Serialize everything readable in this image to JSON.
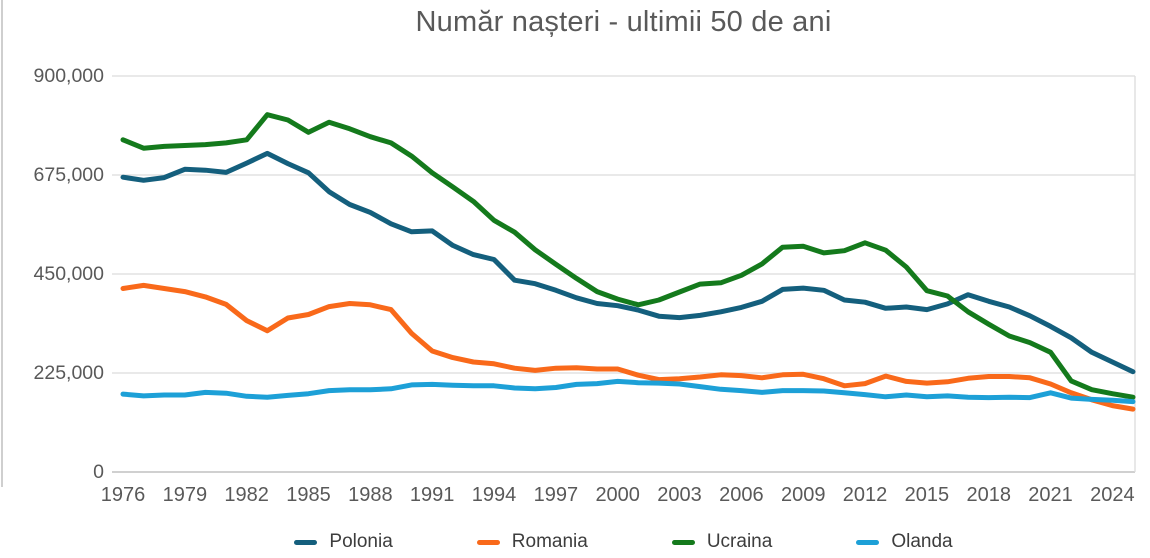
{
  "title": "Număr nașteri - ultimii 50 de ani",
  "chart_data": {
    "type": "line",
    "title": "Număr nașteri - ultimii 50 de ani",
    "xlabel": "",
    "ylabel": "",
    "ylim": [
      0,
      900000
    ],
    "grid": "horizontal",
    "legend_position": "bottom",
    "y_ticks": {
      "values": [
        0,
        225000,
        450000,
        675000,
        900000
      ],
      "labels": [
        "0",
        "225,000",
        "450,000",
        "675,000",
        "900,000"
      ]
    },
    "x_tick_labels": [
      "1976",
      "1979",
      "1982",
      "1985",
      "1988",
      "1991",
      "1994",
      "1997",
      "2000",
      "2003",
      "2006",
      "2009",
      "2012",
      "2015",
      "2018",
      "2021",
      "2024"
    ],
    "x_tick_years": [
      1976,
      1979,
      1982,
      1985,
      1988,
      1991,
      1994,
      1997,
      2000,
      2003,
      2006,
      2009,
      2012,
      2015,
      2018,
      2021,
      2024
    ],
    "x_years": [
      1976,
      1977,
      1978,
      1979,
      1980,
      1981,
      1982,
      1983,
      1984,
      1985,
      1986,
      1987,
      1988,
      1989,
      1990,
      1991,
      1992,
      1993,
      1994,
      1995,
      1996,
      1997,
      1998,
      1999,
      2000,
      2001,
      2002,
      2003,
      2004,
      2005,
      2006,
      2007,
      2008,
      2009,
      2010,
      2011,
      2012,
      2013,
      2014,
      2015,
      2016,
      2017,
      2018,
      2019,
      2020,
      2021,
      2022,
      2023,
      2024,
      2025
    ],
    "series": [
      {
        "name": "Polonia",
        "color": "#145F7D",
        "values": [
          670000,
          663000,
          669000,
          688000,
          686000,
          681000,
          702000,
          724000,
          701000,
          680000,
          637000,
          608000,
          590000,
          564000,
          546000,
          548000,
          515000,
          494000,
          483000,
          436000,
          428000,
          413000,
          396000,
          383000,
          378000,
          368000,
          354000,
          351000,
          356000,
          364000,
          374000,
          388000,
          415000,
          418000,
          413000,
          391000,
          386000,
          372000,
          375000,
          369000,
          382000,
          403000,
          388000,
          375000,
          355000,
          331000,
          305000,
          272000,
          250000,
          228000
        ]
      },
      {
        "name": "Romania",
        "color": "#F9691A",
        "values": [
          417000,
          424000,
          417000,
          410000,
          398000,
          381000,
          344000,
          321000,
          350000,
          358000,
          376000,
          383000,
          380000,
          369000,
          315000,
          275000,
          260000,
          250000,
          246000,
          236000,
          231000,
          236000,
          237000,
          234000,
          234000,
          220000,
          210000,
          212000,
          216000,
          221000,
          219000,
          214000,
          221000,
          222000,
          212000,
          196000,
          201000,
          218000,
          206000,
          202000,
          205000,
          213000,
          217000,
          217000,
          214000,
          200000,
          180000,
          164000,
          151000,
          143000
        ]
      },
      {
        "name": "Ucraina",
        "color": "#147A1C",
        "values": [
          755000,
          736000,
          740000,
          742000,
          744000,
          748000,
          755000,
          812000,
          800000,
          772000,
          795000,
          780000,
          762000,
          748000,
          718000,
          680000,
          648000,
          615000,
          572000,
          545000,
          505000,
          472000,
          440000,
          410000,
          393000,
          380000,
          391000,
          409000,
          427000,
          430000,
          447000,
          473000,
          511000,
          513000,
          498000,
          503000,
          521000,
          504000,
          466000,
          412000,
          400000,
          364000,
          336000,
          309000,
          294000,
          272000,
          207000,
          187000,
          178000,
          170000
        ]
      },
      {
        "name": "Olanda",
        "color": "#1DA0D7",
        "values": [
          177000,
          173000,
          175000,
          175000,
          181000,
          179000,
          172000,
          170000,
          174000,
          178000,
          185000,
          187000,
          187000,
          189000,
          198000,
          199000,
          197000,
          196000,
          196000,
          191000,
          189000,
          192000,
          199000,
          201000,
          206000,
          203000,
          202000,
          200000,
          194000,
          188000,
          185000,
          181000,
          185000,
          185000,
          184000,
          180000,
          176000,
          171000,
          175000,
          171000,
          173000,
          170000,
          169000,
          170000,
          169000,
          180000,
          168000,
          165000,
          163000,
          160000
        ]
      }
    ]
  },
  "style": {
    "axis_label_color": "#595959",
    "grid_color": "#dcdcdc",
    "axis_line_color": "#b5b5b5",
    "legend_text_color": "#3d3d3d"
  }
}
